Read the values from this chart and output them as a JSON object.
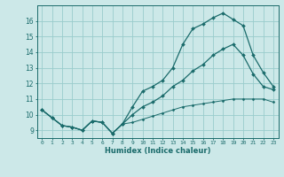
{
  "xlabel": "Humidex (Indice chaleur)",
  "bg_color": "#cce8e8",
  "grid_color": "#99cccc",
  "line_color": "#1a6b6b",
  "xlim": [
    -0.5,
    23.5
  ],
  "ylim": [
    8.5,
    17.0
  ],
  "xticks": [
    0,
    1,
    2,
    3,
    4,
    5,
    6,
    7,
    8,
    9,
    10,
    11,
    12,
    13,
    14,
    15,
    16,
    17,
    18,
    19,
    20,
    21,
    22,
    23
  ],
  "yticks": [
    9,
    10,
    11,
    12,
    13,
    14,
    15,
    16
  ],
  "curve1_y": [
    10.3,
    9.8,
    9.3,
    9.2,
    9.0,
    9.6,
    9.5,
    8.8,
    9.4,
    10.5,
    11.5,
    11.8,
    12.2,
    13.0,
    14.5,
    15.5,
    15.8,
    16.2,
    16.5,
    16.1,
    15.7,
    13.8,
    12.7,
    11.8
  ],
  "curve2_y": [
    10.3,
    9.8,
    9.3,
    9.2,
    9.0,
    9.6,
    9.5,
    8.8,
    9.4,
    10.0,
    10.5,
    10.8,
    11.2,
    11.8,
    12.2,
    12.8,
    13.2,
    13.8,
    14.2,
    14.5,
    13.8,
    12.6,
    11.8,
    11.6
  ],
  "curve3_y": [
    10.3,
    9.8,
    9.3,
    9.2,
    9.0,
    9.6,
    9.5,
    8.8,
    9.4,
    9.5,
    9.7,
    9.9,
    10.1,
    10.3,
    10.5,
    10.6,
    10.7,
    10.8,
    10.9,
    11.0,
    11.0,
    11.0,
    11.0,
    10.8
  ]
}
